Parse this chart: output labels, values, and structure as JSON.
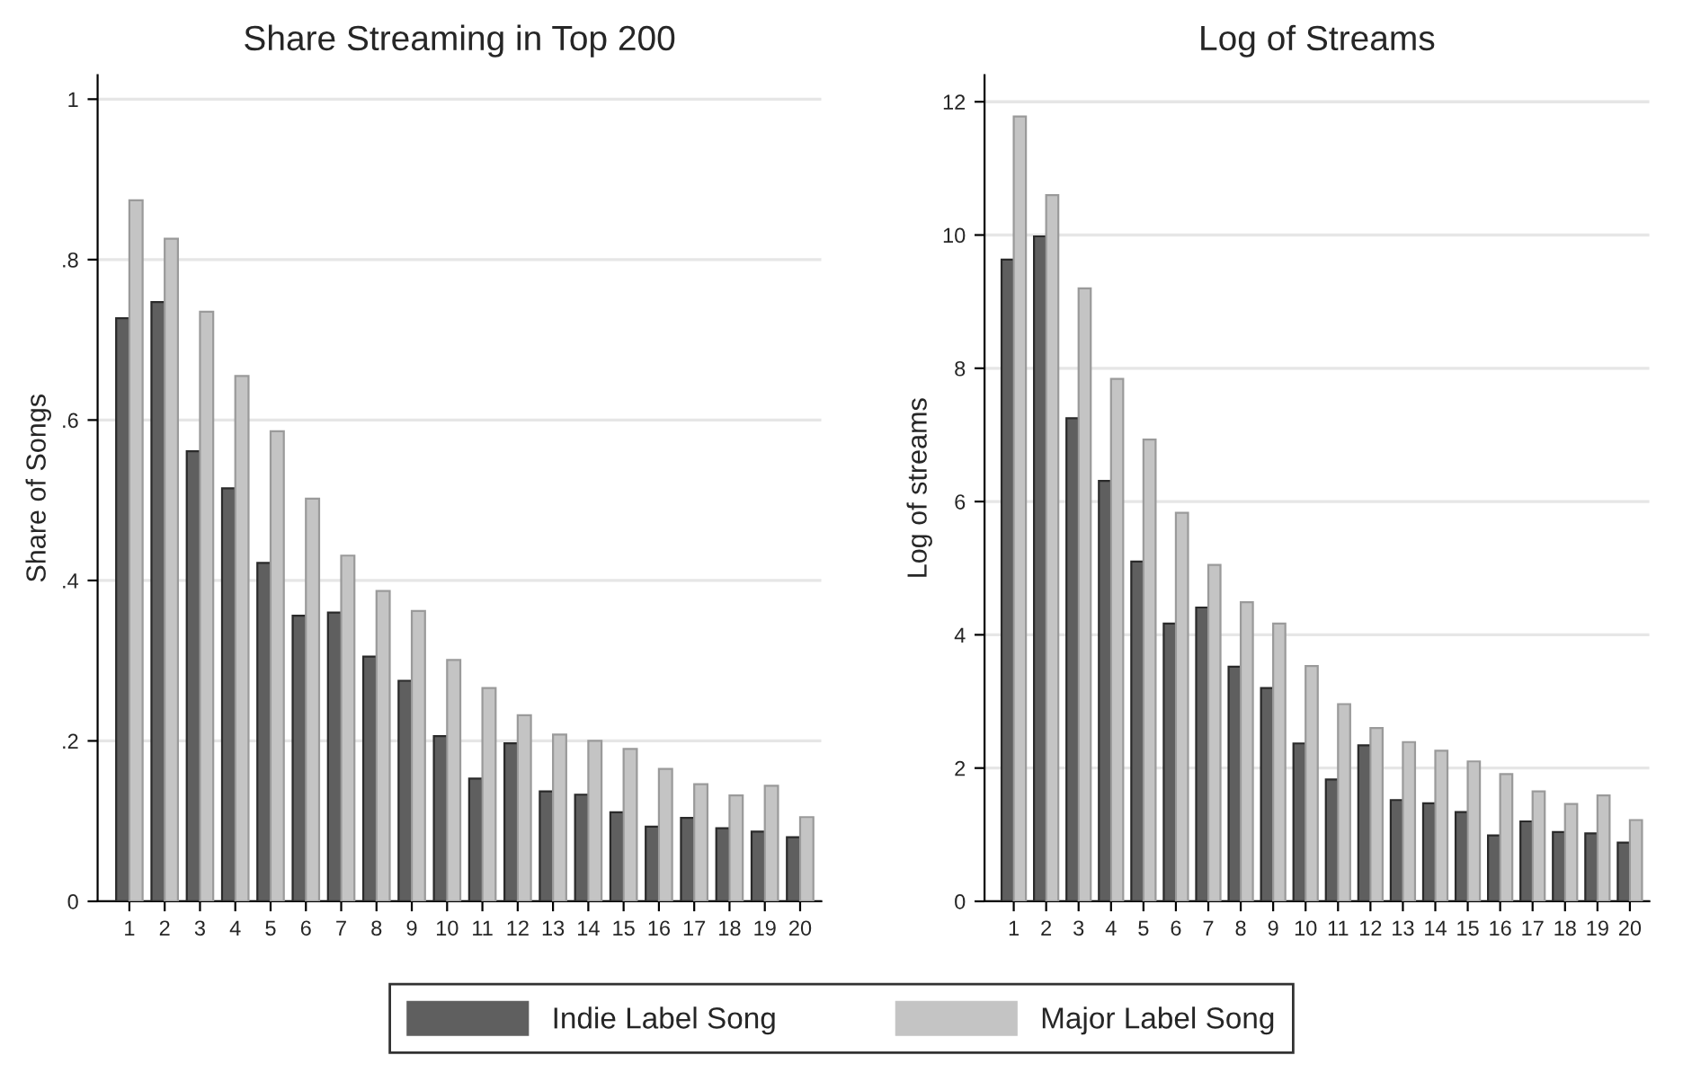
{
  "chart_data": [
    {
      "type": "bar",
      "title": "Share Streaming in Top 200",
      "ylabel": "Share of Songs",
      "categories": [
        "1",
        "2",
        "3",
        "4",
        "5",
        "6",
        "7",
        "8",
        "9",
        "10",
        "11",
        "12",
        "13",
        "14",
        "15",
        "16",
        "17",
        "18",
        "19",
        "20"
      ],
      "series": [
        {
          "name": "Indie Label Song",
          "color": "#5f5f5f",
          "values": [
            0.727,
            0.747,
            0.561,
            0.515,
            0.422,
            0.356,
            0.36,
            0.305,
            0.275,
            0.206,
            0.153,
            0.197,
            0.137,
            0.133,
            0.111,
            0.093,
            0.104,
            0.091,
            0.087,
            0.08
          ]
        },
        {
          "name": "Major Label Song",
          "color": "#c4c4c4",
          "values": [
            0.874,
            0.826,
            0.735,
            0.655,
            0.586,
            0.502,
            0.431,
            0.387,
            0.362,
            0.301,
            0.266,
            0.232,
            0.208,
            0.2,
            0.19,
            0.165,
            0.146,
            0.132,
            0.144,
            0.105
          ]
        }
      ],
      "ylim": [
        0,
        1.03
      ],
      "yticks": [
        0,
        {
          "value": 0.2,
          "label": ".2"
        },
        {
          "value": 0.4,
          "label": ".4"
        },
        {
          "value": 0.6,
          "label": ".6"
        },
        {
          "value": 0.8,
          "label": ".8"
        },
        1
      ],
      "grid": "y",
      "legend": "bottom"
    },
    {
      "type": "bar",
      "title": "Log of Streams",
      "ylabel": "Log of streams",
      "categories": [
        "1",
        "2",
        "3",
        "4",
        "5",
        "6",
        "7",
        "8",
        "9",
        "10",
        "11",
        "12",
        "13",
        "14",
        "15",
        "16",
        "17",
        "18",
        "19",
        "20"
      ],
      "series": [
        {
          "color": "#5f5f5f",
          "values": [
            9.63,
            9.98,
            7.25,
            6.31,
            5.1,
            4.17,
            4.41,
            3.52,
            3.2,
            2.37,
            1.83,
            2.34,
            1.52,
            1.47,
            1.34,
            0.99,
            1.2,
            1.04,
            1.02,
            0.88
          ]
        },
        {
          "color": "#c4c4c4",
          "values": [
            11.78,
            10.6,
            9.2,
            7.84,
            6.93,
            5.83,
            5.05,
            4.49,
            4.17,
            3.53,
            2.96,
            2.6,
            2.39,
            2.26,
            2.1,
            1.91,
            1.65,
            1.46,
            1.59,
            1.22
          ]
        }
      ],
      "ylim": [
        0,
        12.4
      ],
      "yticks": [
        0,
        2,
        4,
        6,
        8,
        10,
        12
      ],
      "grid": "y"
    }
  ]
}
